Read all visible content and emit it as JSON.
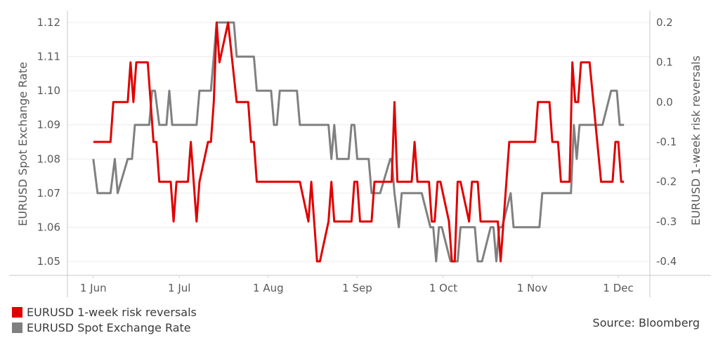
{
  "chart_data": {
    "type": "line",
    "title": "",
    "xlabel": "",
    "ylabel_left": "EURUSD Spot Exchange Rate",
    "ylabel_right": "EURUSD 1-week risk reversals",
    "x_unit": "days since 1 Jun",
    "xlim": [
      -9,
      194
    ],
    "x_ticks": [
      {
        "day": 0,
        "label": "1 Jun"
      },
      {
        "day": 30,
        "label": "1 Jul"
      },
      {
        "day": 61,
        "label": "1 Aug"
      },
      {
        "day": 92,
        "label": "1 Sep"
      },
      {
        "day": 122,
        "label": "1 Oct"
      },
      {
        "day": 153,
        "label": "1 Nov"
      },
      {
        "day": 183,
        "label": "1 Dec"
      }
    ],
    "y_left": {
      "lim": [
        1.05,
        1.12
      ],
      "ticks": [
        "1.12",
        "1.11",
        "1.10",
        "1.09",
        "1.08",
        "1.07",
        "1.06",
        "1.05"
      ]
    },
    "y_right": {
      "lim": [
        -0.4,
        0.2
      ],
      "ticks": [
        "0.2",
        "0.1",
        "0.0",
        "-0.1",
        "-0.2",
        "-0.3",
        "-0.4"
      ]
    },
    "grid": true,
    "legend_position": "bottom-left",
    "source": "Source: Bloomberg",
    "series": [
      {
        "name": "EURUSD 1-week risk reversals",
        "axis": "right",
        "color": "#e00000",
        "points": [
          [
            0,
            -0.1
          ],
          [
            6,
            -0.1
          ],
          [
            7,
            0.0
          ],
          [
            12,
            0.0
          ],
          [
            13,
            0.1
          ],
          [
            14,
            0.0
          ],
          [
            15,
            0.1
          ],
          [
            19,
            0.1
          ],
          [
            21,
            -0.1
          ],
          [
            22,
            -0.1
          ],
          [
            23,
            -0.2
          ],
          [
            27,
            -0.2
          ],
          [
            28,
            -0.3
          ],
          [
            29,
            -0.2
          ],
          [
            33,
            -0.2
          ],
          [
            34,
            -0.1
          ],
          [
            36,
            -0.3
          ],
          [
            37,
            -0.2
          ],
          [
            40,
            -0.1
          ],
          [
            41,
            -0.1
          ],
          [
            42,
            0.0
          ],
          [
            43,
            0.2
          ],
          [
            44,
            0.1
          ],
          [
            47,
            0.2
          ],
          [
            50,
            0.0
          ],
          [
            54,
            0.0
          ],
          [
            55,
            -0.1
          ],
          [
            56,
            -0.1
          ],
          [
            57,
            -0.2
          ],
          [
            72,
            -0.2
          ],
          [
            75,
            -0.3
          ],
          [
            76,
            -0.2
          ],
          [
            78,
            -0.4
          ],
          [
            79,
            -0.4
          ],
          [
            82,
            -0.3
          ],
          [
            83,
            -0.2
          ],
          [
            84,
            -0.3
          ],
          [
            90,
            -0.3
          ],
          [
            91,
            -0.2
          ],
          [
            92,
            -0.2
          ],
          [
            93,
            -0.3
          ],
          [
            97,
            -0.3
          ],
          [
            98,
            -0.2
          ],
          [
            104,
            -0.2
          ],
          [
            105,
            0.0
          ],
          [
            106,
            -0.2
          ],
          [
            111,
            -0.2
          ],
          [
            112,
            -0.1
          ],
          [
            113,
            -0.2
          ],
          [
            117,
            -0.2
          ],
          [
            118,
            -0.3
          ],
          [
            119,
            -0.3
          ],
          [
            120,
            -0.2
          ],
          [
            121,
            -0.2
          ],
          [
            124,
            -0.3
          ],
          [
            125,
            -0.4
          ],
          [
            126,
            -0.4
          ],
          [
            127,
            -0.2
          ],
          [
            128,
            -0.2
          ],
          [
            131,
            -0.3
          ],
          [
            132,
            -0.2
          ],
          [
            134,
            -0.2
          ],
          [
            135,
            -0.3
          ],
          [
            141,
            -0.3
          ],
          [
            142,
            -0.4
          ],
          [
            145,
            -0.1
          ],
          [
            154,
            -0.1
          ],
          [
            155,
            0.0
          ],
          [
            159,
            0.0
          ],
          [
            160,
            -0.1
          ],
          [
            162,
            -0.1
          ],
          [
            163,
            -0.2
          ],
          [
            166,
            -0.2
          ],
          [
            167,
            0.1
          ],
          [
            168,
            0.0
          ],
          [
            169,
            0.0
          ],
          [
            170,
            0.1
          ],
          [
            173,
            0.1
          ],
          [
            177,
            -0.2
          ],
          [
            181,
            -0.2
          ],
          [
            182,
            -0.1
          ],
          [
            183,
            -0.1
          ],
          [
            184,
            -0.2
          ],
          [
            185,
            -0.2
          ]
        ]
      },
      {
        "name": "EURUSD Spot Exchange Rate",
        "axis": "left",
        "color": "#808080",
        "points": [
          [
            0,
            1.08
          ],
          [
            1.5,
            1.07
          ],
          [
            6,
            1.07
          ],
          [
            7.5,
            1.08
          ],
          [
            8.5,
            1.07
          ],
          [
            12,
            1.08
          ],
          [
            13.5,
            1.08
          ],
          [
            14.5,
            1.09
          ],
          [
            19.5,
            1.09
          ],
          [
            20.5,
            1.1
          ],
          [
            21.5,
            1.1
          ],
          [
            23,
            1.09
          ],
          [
            25.5,
            1.09
          ],
          [
            26.5,
            1.1
          ],
          [
            27.5,
            1.09
          ],
          [
            36,
            1.09
          ],
          [
            37,
            1.1
          ],
          [
            41,
            1.1
          ],
          [
            43,
            1.12
          ],
          [
            49,
            1.12
          ],
          [
            50,
            1.11
          ],
          [
            56,
            1.11
          ],
          [
            57,
            1.1
          ],
          [
            62,
            1.1
          ],
          [
            63,
            1.09
          ],
          [
            64,
            1.09
          ],
          [
            65,
            1.1
          ],
          [
            71,
            1.1
          ],
          [
            72,
            1.09
          ],
          [
            82,
            1.09
          ],
          [
            83,
            1.08
          ],
          [
            84,
            1.09
          ],
          [
            85,
            1.08
          ],
          [
            89,
            1.08
          ],
          [
            90,
            1.09
          ],
          [
            91,
            1.09
          ],
          [
            92,
            1.08
          ],
          [
            96,
            1.08
          ],
          [
            97,
            1.07
          ],
          [
            100,
            1.07
          ],
          [
            103.5,
            1.08
          ],
          [
            104,
            1.08
          ],
          [
            105,
            1.07
          ],
          [
            106.5,
            1.06
          ],
          [
            107.5,
            1.07
          ],
          [
            114.5,
            1.07
          ],
          [
            117.5,
            1.06
          ],
          [
            118.5,
            1.06
          ],
          [
            119.5,
            1.05
          ],
          [
            120.5,
            1.06
          ],
          [
            121.5,
            1.06
          ],
          [
            124.5,
            1.05
          ],
          [
            127,
            1.05
          ],
          [
            128,
            1.06
          ],
          [
            133,
            1.06
          ],
          [
            134,
            1.05
          ],
          [
            135.5,
            1.05
          ],
          [
            138.5,
            1.06
          ],
          [
            139.5,
            1.06
          ],
          [
            140.5,
            1.05
          ],
          [
            141.5,
            1.06
          ],
          [
            142.5,
            1.06
          ],
          [
            145.5,
            1.07
          ],
          [
            146.5,
            1.06
          ],
          [
            155.5,
            1.06
          ],
          [
            156.5,
            1.07
          ],
          [
            166.5,
            1.07
          ],
          [
            167.5,
            1.09
          ],
          [
            168.5,
            1.08
          ],
          [
            169.5,
            1.09
          ],
          [
            177.5,
            1.09
          ],
          [
            180.5,
            1.1
          ],
          [
            182.5,
            1.1
          ],
          [
            183.5,
            1.09
          ],
          [
            185,
            1.09
          ]
        ]
      }
    ]
  }
}
